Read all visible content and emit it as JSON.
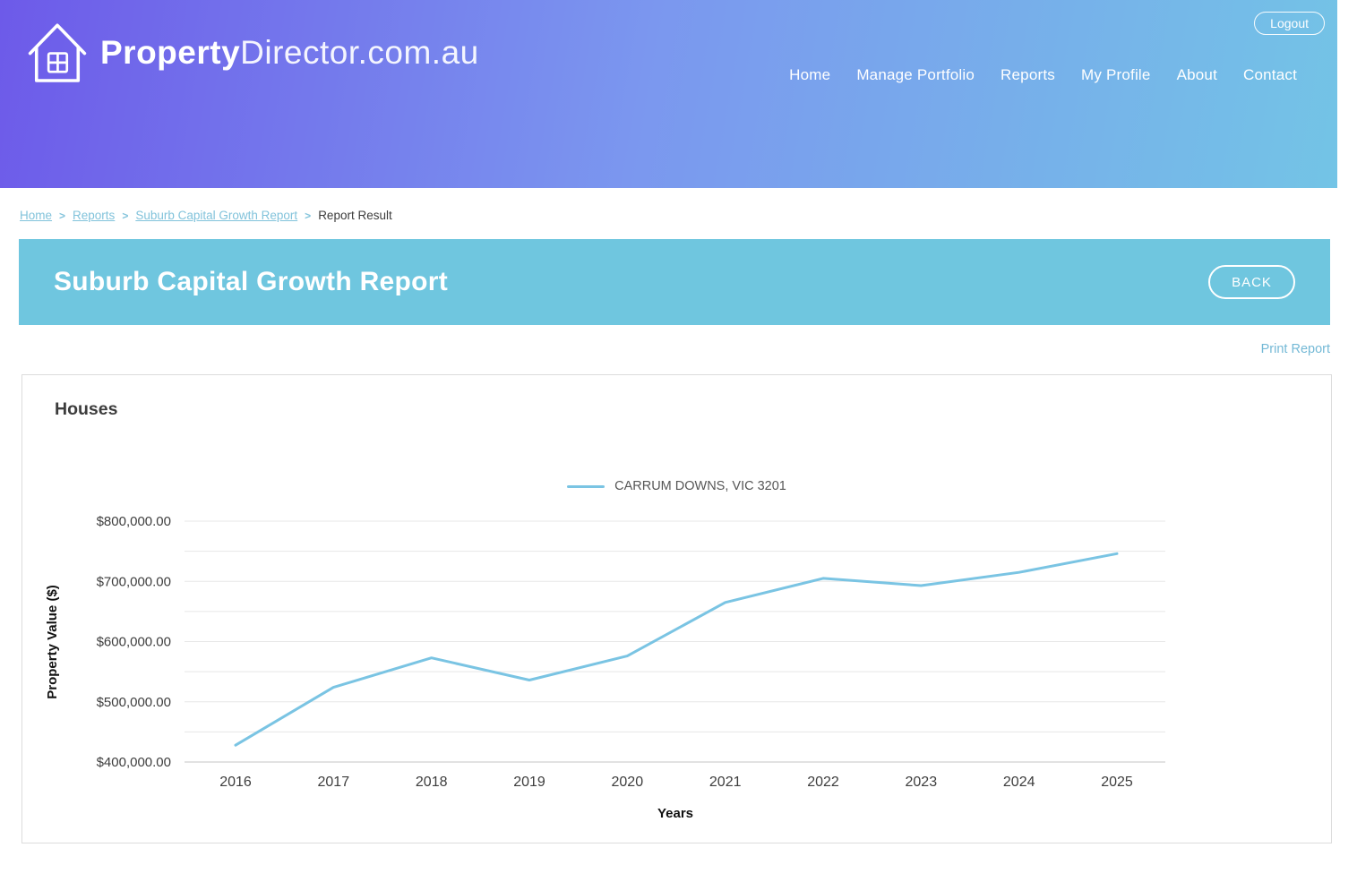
{
  "header": {
    "brand_bold": "Property",
    "brand_light": "Director.com.au",
    "logout_label": "Logout",
    "nav": [
      "Home",
      "Manage Portfolio",
      "Reports",
      "My Profile",
      "About",
      "Contact"
    ]
  },
  "breadcrumb": {
    "separator": ">",
    "links": [
      "Home",
      "Reports",
      "Suburb Capital Growth Report"
    ],
    "current": "Report Result"
  },
  "banner": {
    "title": "Suburb Capital Growth Report",
    "back_label": "BACK"
  },
  "print_report_label": "Print Report",
  "report_card": {
    "section_title": "Houses"
  },
  "chart_data": {
    "type": "line",
    "title": "Houses",
    "x": [
      "2016",
      "2017",
      "2018",
      "2019",
      "2020",
      "2021",
      "2022",
      "2023",
      "2024",
      "2025"
    ],
    "series": [
      {
        "name": "CARRUM DOWNS, VIC 3201",
        "color": "#7ac4e3",
        "values": [
          428000,
          524000,
          573000,
          536000,
          576000,
          665000,
          705000,
          693000,
          715000,
          746000
        ]
      }
    ],
    "xlabel": "Years",
    "ylabel": "Property Value ($)",
    "ylim": [
      400000,
      800000
    ],
    "ytick_step": 50000,
    "yticks": {
      "values": [
        800000,
        700000,
        600000,
        500000,
        400000
      ],
      "labels": [
        "$800,000.00",
        "$700,000.00",
        "$600,000.00",
        "$500,000.00",
        "$400,000.00"
      ]
    },
    "grid": true,
    "legend_position": "top-center"
  },
  "colors": {
    "header_gradient_left": "#6d5ae9",
    "header_gradient_right": "#73c4e6",
    "banner_background": "#6fc6df",
    "breadcrumb_link": "#82c3db",
    "print_link": "#74b9d6",
    "series_line": "#7ac4e3",
    "gridline": "#e7e7e7",
    "axis_line": "#c4c4c4",
    "tick_text": "#3d3d3d"
  }
}
